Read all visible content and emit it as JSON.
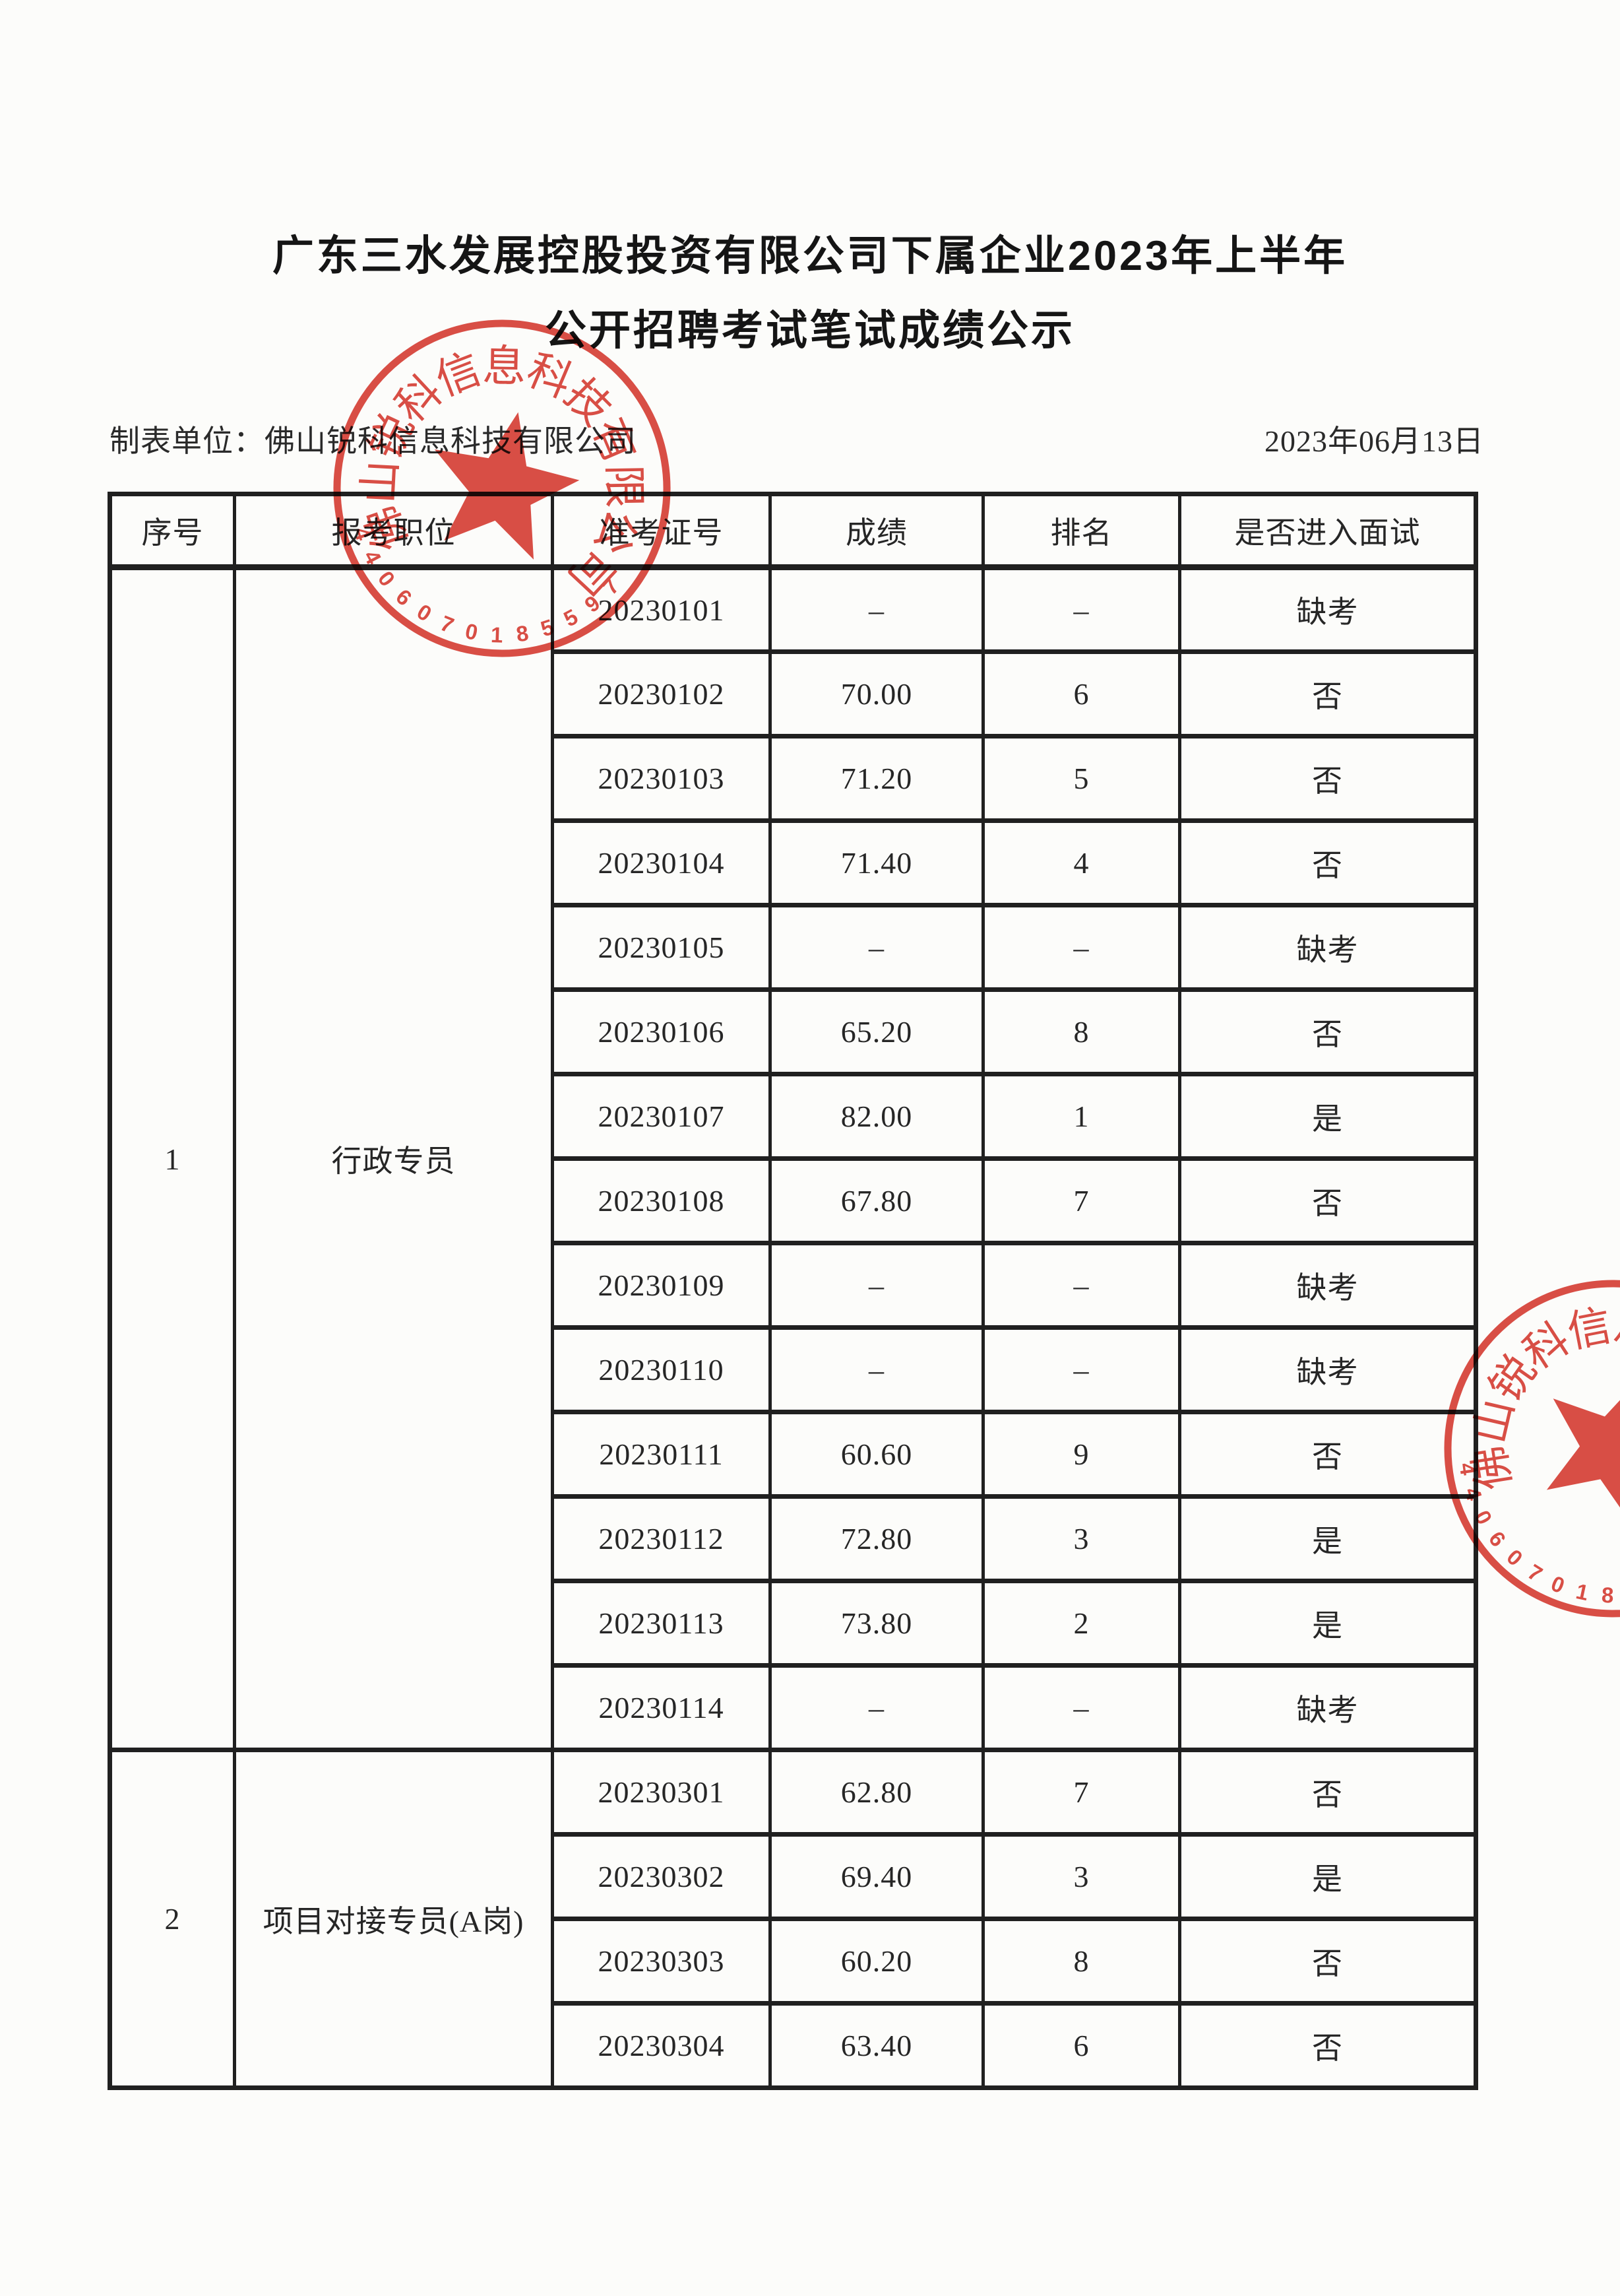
{
  "page": {
    "title_line1": "广东三水发展控股投资有限公司下属企业2023年上半年",
    "title_line2": "公开招聘考试笔试成绩公示",
    "prepared_by": "制表单位：佛山锐科信息科技有限公司",
    "date": "2023年06月13日"
  },
  "table": {
    "headers": [
      "序号",
      "报考职位",
      "准考证号",
      "成绩",
      "排名",
      "是否进入面试"
    ],
    "groups": [
      {
        "no": "1",
        "position": "行政专员",
        "rows": [
          [
            "20230101",
            "–",
            "–",
            "缺考"
          ],
          [
            "20230102",
            "70.00",
            "6",
            "否"
          ],
          [
            "20230103",
            "71.20",
            "5",
            "否"
          ],
          [
            "20230104",
            "71.40",
            "4",
            "否"
          ],
          [
            "20230105",
            "–",
            "–",
            "缺考"
          ],
          [
            "20230106",
            "65.20",
            "8",
            "否"
          ],
          [
            "20230107",
            "82.00",
            "1",
            "是"
          ],
          [
            "20230108",
            "67.80",
            "7",
            "否"
          ],
          [
            "20230109",
            "–",
            "–",
            "缺考"
          ],
          [
            "20230110",
            "–",
            "–",
            "缺考"
          ],
          [
            "20230111",
            "60.60",
            "9",
            "否"
          ],
          [
            "20230112",
            "72.80",
            "3",
            "是"
          ],
          [
            "20230113",
            "73.80",
            "2",
            "是"
          ],
          [
            "20230114",
            "–",
            "–",
            "缺考"
          ]
        ]
      },
      {
        "no": "2",
        "position": "项目对接专员(A岗)",
        "rows": [
          [
            "20230301",
            "62.80",
            "7",
            "否"
          ],
          [
            "20230302",
            "69.40",
            "3",
            "是"
          ],
          [
            "20230303",
            "60.20",
            "8",
            "否"
          ],
          [
            "20230304",
            "63.40",
            "6",
            "否"
          ]
        ]
      }
    ]
  },
  "stamp": {
    "company_arc_text": "佛山锐科信息科技有限公司",
    "serial_arc_text": "4406070185597",
    "color": "#d6362c"
  }
}
